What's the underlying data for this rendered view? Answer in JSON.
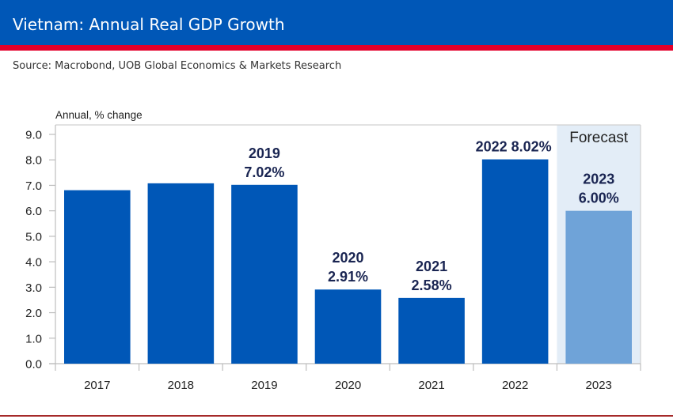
{
  "header": {
    "title": "Vietnam: Annual Real GDP Growth",
    "source": "Source: Macrobond, UOB Global Economics & Markets Research"
  },
  "colors": {
    "header_blue": "#0057b7",
    "header_red": "#e4002b",
    "bar_actual": "#0057b7",
    "bar_forecast": "#6fa3d8",
    "forecast_shade": "#e3edf7",
    "label_text": "#1a2552"
  },
  "chart_data": {
    "type": "bar",
    "title": "Vietnam: Annual Real GDP Growth",
    "ylabel": "Annual, % change",
    "xlabel": "",
    "ylim": [
      0,
      9
    ],
    "yticks": [
      "0.0",
      "1.0",
      "2.0",
      "3.0",
      "4.0",
      "5.0",
      "6.0",
      "7.0",
      "8.0",
      "9.0"
    ],
    "categories": [
      "2017",
      "2018",
      "2019",
      "2020",
      "2021",
      "2022",
      "2023"
    ],
    "values": [
      6.81,
      7.08,
      7.02,
      2.91,
      2.58,
      8.02,
      6.0
    ],
    "forecast": [
      false,
      false,
      false,
      false,
      false,
      false,
      true
    ],
    "forecast_label": "Forecast",
    "grid": false,
    "data_labels": [
      null,
      null,
      {
        "line1": "2019",
        "line2": "7.02%"
      },
      {
        "line1": "2020",
        "line2": "2.91%"
      },
      {
        "line1": "2021",
        "line2": "2.58%"
      },
      {
        "line1": "2022  8.02%",
        "line2": null
      },
      {
        "line1": "2023",
        "line2": "6.00%"
      }
    ]
  }
}
